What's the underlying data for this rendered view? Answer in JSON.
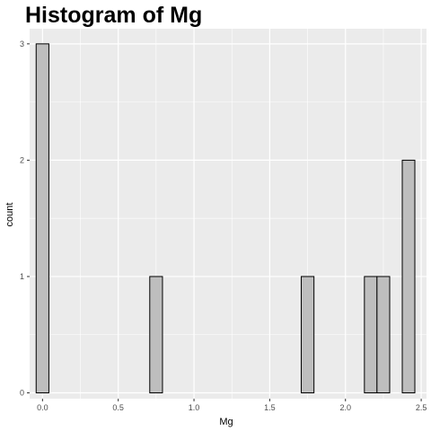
{
  "chart_data": {
    "type": "bar",
    "title": "Histogram of Mg",
    "xlabel": "Mg",
    "ylabel": "count",
    "xlim": [
      -0.085,
      2.535
    ],
    "ylim": [
      -0.05,
      3.13
    ],
    "x_ticks": [
      0.0,
      0.5,
      1.0,
      1.5,
      2.0,
      2.5
    ],
    "x_tick_labels": [
      "0.0",
      "0.5",
      "1.0",
      "1.5",
      "2.0",
      "2.5"
    ],
    "y_ticks": [
      0,
      1,
      2,
      3
    ],
    "y_tick_labels": [
      "0",
      "1",
      "2",
      "3"
    ],
    "bin_width": 0.0833,
    "bins": [
      {
        "x0": -0.042,
        "x1": 0.042,
        "count": 3
      },
      {
        "x0": 0.042,
        "x1": 0.125,
        "count": 0
      },
      {
        "x0": 0.125,
        "x1": 0.208,
        "count": 0
      },
      {
        "x0": 0.208,
        "x1": 0.292,
        "count": 0
      },
      {
        "x0": 0.292,
        "x1": 0.375,
        "count": 0
      },
      {
        "x0": 0.375,
        "x1": 0.458,
        "count": 0
      },
      {
        "x0": 0.458,
        "x1": 0.542,
        "count": 0
      },
      {
        "x0": 0.542,
        "x1": 0.625,
        "count": 0
      },
      {
        "x0": 0.625,
        "x1": 0.708,
        "count": 0
      },
      {
        "x0": 0.708,
        "x1": 0.792,
        "count": 1
      },
      {
        "x0": 0.792,
        "x1": 0.875,
        "count": 0
      },
      {
        "x0": 0.875,
        "x1": 0.958,
        "count": 0
      },
      {
        "x0": 0.958,
        "x1": 1.042,
        "count": 0
      },
      {
        "x0": 1.042,
        "x1": 1.125,
        "count": 0
      },
      {
        "x0": 1.125,
        "x1": 1.208,
        "count": 0
      },
      {
        "x0": 1.208,
        "x1": 1.292,
        "count": 0
      },
      {
        "x0": 1.292,
        "x1": 1.375,
        "count": 0
      },
      {
        "x0": 1.375,
        "x1": 1.458,
        "count": 0
      },
      {
        "x0": 1.458,
        "x1": 1.542,
        "count": 0
      },
      {
        "x0": 1.542,
        "x1": 1.625,
        "count": 0
      },
      {
        "x0": 1.625,
        "x1": 1.708,
        "count": 0
      },
      {
        "x0": 1.708,
        "x1": 1.792,
        "count": 1
      },
      {
        "x0": 1.792,
        "x1": 1.875,
        "count": 0
      },
      {
        "x0": 1.875,
        "x1": 1.958,
        "count": 0
      },
      {
        "x0": 1.958,
        "x1": 2.042,
        "count": 0
      },
      {
        "x0": 2.042,
        "x1": 2.125,
        "count": 0
      },
      {
        "x0": 2.125,
        "x1": 2.208,
        "count": 1
      },
      {
        "x0": 2.208,
        "x1": 2.292,
        "count": 1
      },
      {
        "x0": 2.292,
        "x1": 2.375,
        "count": 0
      },
      {
        "x0": 2.375,
        "x1": 2.458,
        "count": 2
      }
    ],
    "grid": true,
    "legend": "none",
    "colors": {
      "panel_background": "#ebebeb",
      "grid_major": "#ffffff",
      "bar_fill": "#bebebe",
      "bar_outline": "#000000"
    }
  }
}
